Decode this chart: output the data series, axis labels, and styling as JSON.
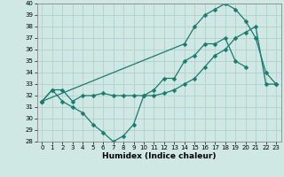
{
  "xlabel": "Humidex (Indice chaleur)",
  "x": [
    0,
    1,
    2,
    3,
    4,
    5,
    6,
    7,
    8,
    9,
    10,
    11,
    12,
    13,
    14,
    15,
    16,
    17,
    18,
    19,
    20,
    21,
    22,
    23
  ],
  "line1": [
    31.5,
    32.5,
    32.5,
    31.5,
    32.0,
    32.0,
    32.2,
    32.0,
    32.0,
    32.0,
    32.0,
    32.0,
    32.2,
    32.5,
    33.0,
    33.5,
    34.5,
    35.5,
    36.0,
    37.0,
    37.5,
    38.0,
    33.0,
    33.0
  ],
  "line2": [
    31.5,
    32.5,
    31.5,
    31.0,
    30.5,
    29.5,
    28.8,
    28.0,
    28.5,
    29.5,
    32.0,
    32.5,
    33.5,
    33.5,
    35.0,
    35.5,
    36.5,
    36.5,
    37.0,
    35.0,
    34.5,
    null,
    null,
    null
  ],
  "line3": [
    31.5,
    null,
    null,
    null,
    null,
    null,
    null,
    null,
    null,
    null,
    null,
    null,
    null,
    null,
    36.5,
    38.0,
    39.0,
    39.5,
    40.0,
    39.5,
    38.5,
    37.0,
    34.0,
    33.0
  ],
  "color": "#1a7a6e",
  "bg_color": "#d0e8e4",
  "grid_color": "#b0d0cc",
  "ylim": [
    28,
    40
  ],
  "xlim_min": -0.5,
  "xlim_max": 23.5,
  "yticks": [
    28,
    29,
    30,
    31,
    32,
    33,
    34,
    35,
    36,
    37,
    38,
    39,
    40
  ],
  "xticks": [
    0,
    1,
    2,
    3,
    4,
    5,
    6,
    7,
    8,
    9,
    10,
    11,
    12,
    13,
    14,
    15,
    16,
    17,
    18,
    19,
    20,
    21,
    22,
    23
  ],
  "marker_size": 2.5,
  "linewidth": 0.9,
  "tick_fontsize": 5.0,
  "xlabel_fontsize": 6.5
}
